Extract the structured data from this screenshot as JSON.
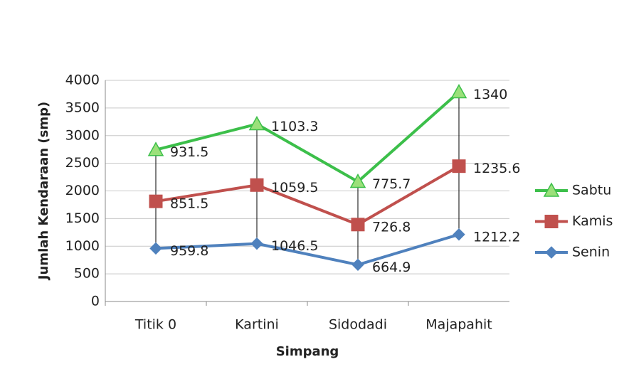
{
  "chart_data": {
    "type": "line",
    "stacked": true,
    "x_label": "Simpang",
    "y_label": "Jumlah Kendaraan (smp)",
    "categories": [
      "Titik 0",
      "Kartini",
      "Sidodadi",
      "Majapahit"
    ],
    "series": [
      {
        "name": "Senin",
        "color": "#4f81bd",
        "marker": "diamond",
        "values": [
          959.8,
          1046.5,
          664.9,
          1212.2
        ]
      },
      {
        "name": "Kamis",
        "color": "#c0504d",
        "marker": "square",
        "values": [
          851.5,
          1059.5,
          726.8,
          1235.6
        ]
      },
      {
        "name": "Sabtu",
        "color": "#3cbf4a",
        "marker": "triangle",
        "values": [
          931.5,
          1103.3,
          775.7,
          1340
        ]
      }
    ],
    "ylim": [
      0,
      4000
    ],
    "yticks": [
      0,
      500,
      1000,
      1500,
      2000,
      2500,
      3000,
      3500,
      4000
    ],
    "grid": true,
    "legend": "right",
    "drop_lines": true
  }
}
